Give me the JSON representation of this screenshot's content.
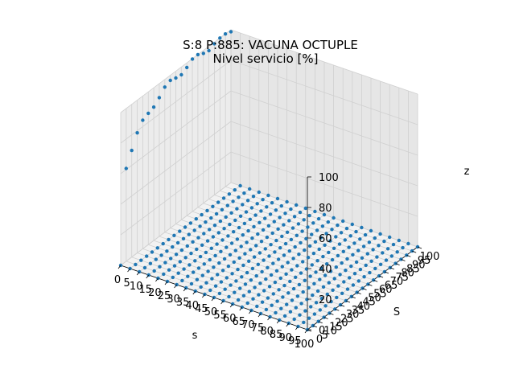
{
  "chart_data": {
    "type": "scatter",
    "projection": "3d",
    "title": "S:8 P:885: VACUNA OCTUPLE",
    "subtitle": "Nivel servicio [%]",
    "xlabel": "s",
    "ylabel": "S",
    "zlabel": "z",
    "xlim": [
      0,
      100
    ],
    "ylim": [
      0,
      100
    ],
    "zlim": [
      0,
      100
    ],
    "x_ticks": [
      "0",
      "5",
      "10",
      "15",
      "20",
      "25",
      "30",
      "35",
      "40",
      "45",
      "50",
      "55",
      "60",
      "65",
      "70",
      "75",
      "80",
      "85",
      "90",
      "95",
      "100"
    ],
    "y_ticks": [
      "0",
      "5",
      "10",
      "15",
      "20",
      "25",
      "30",
      "35",
      "40",
      "45",
      "50",
      "55",
      "60",
      "65",
      "70",
      "75",
      "80",
      "85",
      "90",
      "95",
      "100"
    ],
    "z_ticks": [
      "0",
      "20",
      "40",
      "60",
      "80",
      "100"
    ],
    "grid": true,
    "point_color": "#1f77b4",
    "pane_color": "#f2f2f2",
    "grid_color": "#d0d0d0",
    "surface": {
      "description_values": "z = 0 for points where S <= s (invalid policy region)",
      "upper_z_range": [
        52,
        100
      ],
      "step": 5
    }
  }
}
